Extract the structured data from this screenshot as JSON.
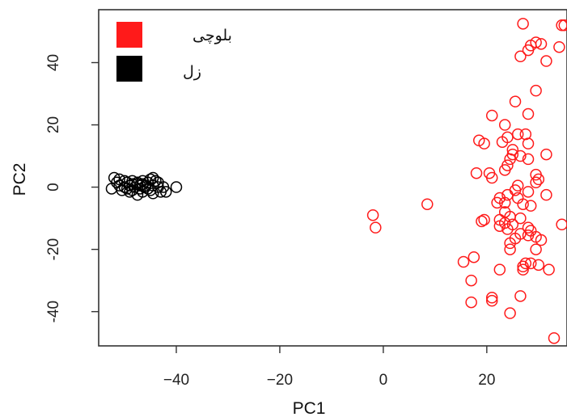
{
  "chart_data": {
    "type": "scatter",
    "xlabel": "PC1",
    "ylabel": "PC2",
    "xlim": [
      -55,
      35.5
    ],
    "ylim": [
      -51,
      57
    ],
    "xticks": [
      -40,
      -20,
      0,
      20
    ],
    "yticks": [
      -40,
      -20,
      0,
      20,
      40
    ],
    "x_tick_labels": [
      "−40",
      "−20",
      "0",
      "20"
    ],
    "y_tick_labels": [
      "-40",
      "-20",
      "0",
      "20",
      "40"
    ],
    "legend_position": "top-left",
    "series": [
      {
        "name": "بلوچی",
        "color": "#ff1a1a",
        "points": [
          [
            27,
            52.5
          ],
          [
            35,
            52
          ],
          [
            34.5,
            52
          ],
          [
            29.5,
            46.5
          ],
          [
            30.5,
            46
          ],
          [
            28.5,
            45.5
          ],
          [
            34,
            45
          ],
          [
            28,
            44
          ],
          [
            26.5,
            42
          ],
          [
            31.5,
            40.5
          ],
          [
            29.5,
            31
          ],
          [
            25.5,
            27.5
          ],
          [
            21,
            23
          ],
          [
            28,
            23.5
          ],
          [
            23.5,
            20
          ],
          [
            26,
            17
          ],
          [
            27.5,
            17
          ],
          [
            24,
            16
          ],
          [
            18.5,
            15
          ],
          [
            19.5,
            14
          ],
          [
            23,
            14.5
          ],
          [
            28,
            14
          ],
          [
            25,
            12
          ],
          [
            25,
            10.5
          ],
          [
            26.5,
            10
          ],
          [
            24.5,
            9
          ],
          [
            28,
            9
          ],
          [
            31.5,
            10.5
          ],
          [
            24,
            7
          ],
          [
            23.5,
            5.5
          ],
          [
            18,
            4.5
          ],
          [
            20.5,
            4.5
          ],
          [
            21,
            3
          ],
          [
            29.5,
            4
          ],
          [
            29.5,
            1.5
          ],
          [
            30,
            2.5
          ],
          [
            26,
            0.5
          ],
          [
            25.5,
            -1
          ],
          [
            28,
            -1.5
          ],
          [
            31.5,
            -2.5
          ],
          [
            24,
            -2.5
          ],
          [
            22.5,
            -3.5
          ],
          [
            26,
            -3.5
          ],
          [
            22,
            -5
          ],
          [
            23.5,
            -5
          ],
          [
            27,
            -5.5
          ],
          [
            28.5,
            -6
          ],
          [
            23.5,
            -8
          ],
          [
            24.5,
            -9.5
          ],
          [
            26.5,
            -10
          ],
          [
            22.5,
            -10.5
          ],
          [
            19.5,
            -10.5
          ],
          [
            19,
            -11
          ],
          [
            23.5,
            -11.5
          ],
          [
            25,
            -12
          ],
          [
            22.5,
            -12.5
          ],
          [
            28,
            -13
          ],
          [
            24,
            -13.5
          ],
          [
            28.5,
            -14
          ],
          [
            26.5,
            -15
          ],
          [
            28,
            -15.5
          ],
          [
            29.5,
            -16
          ],
          [
            30.5,
            -17
          ],
          [
            25.5,
            -16.5
          ],
          [
            24.5,
            -18
          ],
          [
            29.5,
            -20
          ],
          [
            24.5,
            -20
          ],
          [
            27.5,
            -24.5
          ],
          [
            17.5,
            -22.5
          ],
          [
            15.5,
            -24
          ],
          [
            28.5,
            -24.5
          ],
          [
            30,
            -25
          ],
          [
            27,
            -25.5
          ],
          [
            27,
            -26.5
          ],
          [
            22.5,
            -26.5
          ],
          [
            32,
            -26.5
          ],
          [
            17,
            -30
          ],
          [
            26.5,
            -35
          ],
          [
            21,
            -35.5
          ],
          [
            21,
            -36.5
          ],
          [
            17,
            -37
          ],
          [
            24.5,
            -40.5
          ],
          [
            33,
            -48.5
          ],
          [
            -2,
            -9
          ],
          [
            -1.5,
            -13
          ],
          [
            8.5,
            -5.5
          ],
          [
            34.5,
            -12
          ]
        ]
      },
      {
        "name": "زل",
        "color": "#000000",
        "points": [
          [
            -52,
            3
          ],
          [
            -51,
            2.5
          ],
          [
            -50,
            2
          ],
          [
            -49.5,
            1.5
          ],
          [
            -48.5,
            2
          ],
          [
            -47.5,
            1.5
          ],
          [
            -46.5,
            2
          ],
          [
            -45,
            2.5
          ],
          [
            -44.5,
            3
          ],
          [
            -52.5,
            -0.5
          ],
          [
            -51,
            0.5
          ],
          [
            -50,
            0
          ],
          [
            -49,
            0.5
          ],
          [
            -48,
            0
          ],
          [
            -47,
            0.5
          ],
          [
            -46,
            0
          ],
          [
            -45.5,
            -0.5
          ],
          [
            -44.5,
            0.5
          ],
          [
            -43.5,
            0
          ],
          [
            -42.5,
            0
          ],
          [
            -40,
            0
          ],
          [
            -42,
            -1.5
          ],
          [
            -43,
            -1.5
          ],
          [
            -44.5,
            -2
          ],
          [
            -46.5,
            -1.5
          ],
          [
            -47.5,
            -2.5
          ],
          [
            -49,
            -1.5
          ],
          [
            -50.5,
            -1
          ],
          [
            -48.5,
            1
          ],
          [
            -47.5,
            1
          ],
          [
            -46.5,
            1
          ],
          [
            -45.5,
            1.5
          ],
          [
            -49.5,
            -0.5
          ],
          [
            -48.5,
            -1
          ],
          [
            -45,
            -1
          ],
          [
            -47,
            -0.5
          ],
          [
            -46,
            0.5
          ],
          [
            -44,
            2
          ],
          [
            -43.5,
            1.5
          ],
          [
            -51.5,
            1.5
          ]
        ]
      }
    ]
  }
}
